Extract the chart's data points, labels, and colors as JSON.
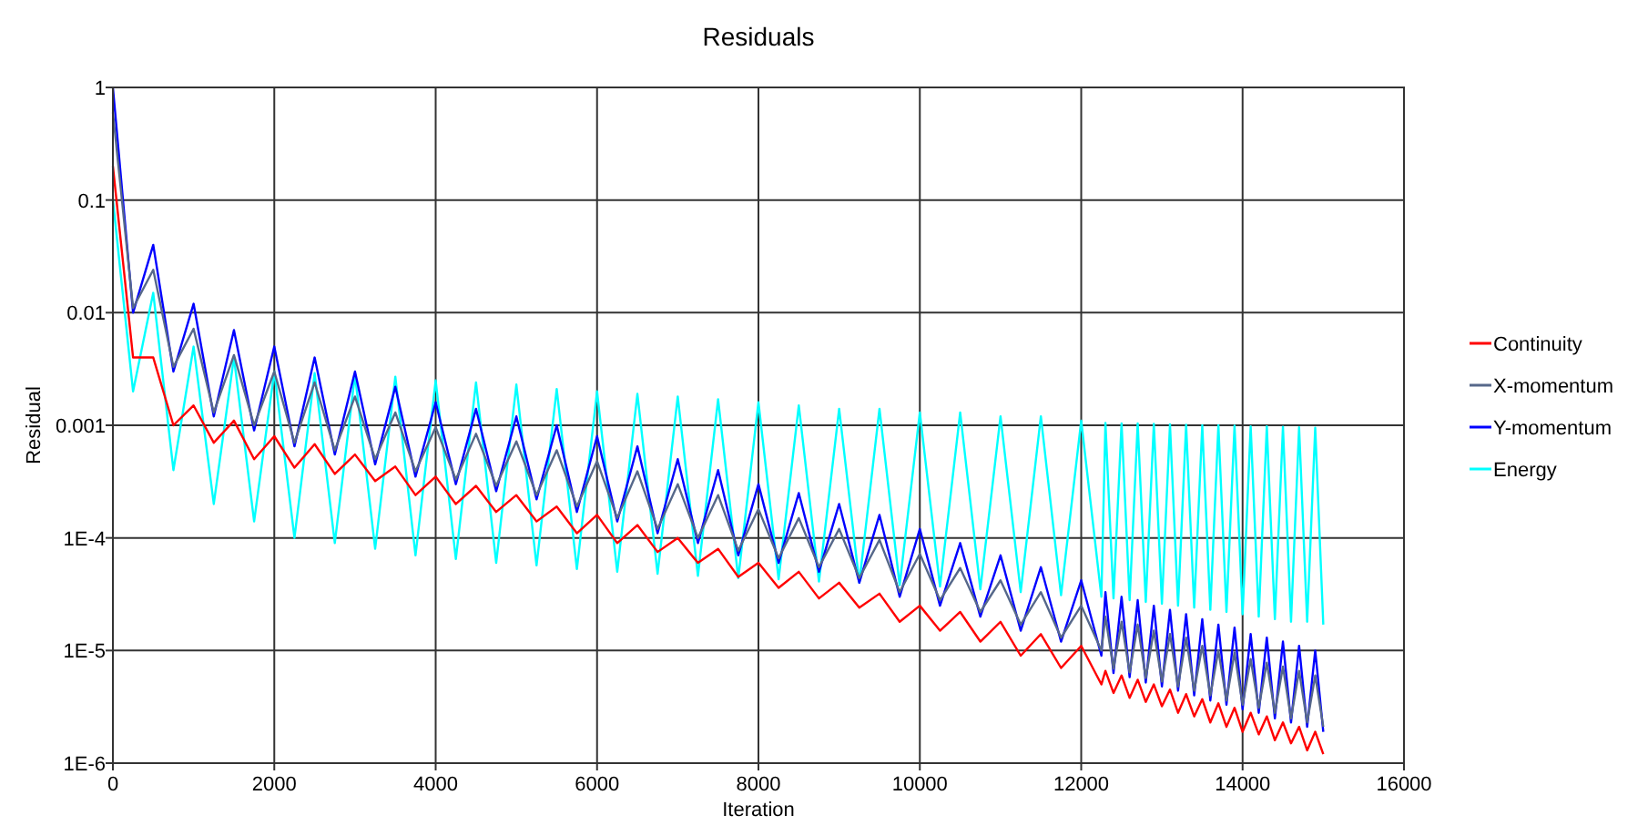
{
  "chart_data": {
    "type": "line",
    "title": "Residuals",
    "xlabel": "Iteration",
    "ylabel": "Residual",
    "x": [
      0,
      250,
      500,
      750,
      1000,
      1250,
      1500,
      1750,
      2000,
      2250,
      2500,
      2750,
      3000,
      3250,
      3500,
      3750,
      4000,
      4250,
      4500,
      4750,
      5000,
      5250,
      5500,
      5750,
      6000,
      6250,
      6500,
      6750,
      7000,
      7250,
      7500,
      7750,
      8000,
      8250,
      8500,
      8750,
      9000,
      9250,
      9500,
      9750,
      10000,
      10250,
      10500,
      10750,
      11000,
      11250,
      11500,
      11750,
      12000,
      12250,
      12300,
      12400,
      12500,
      12600,
      12700,
      12800,
      12900,
      13000,
      13100,
      13200,
      13300,
      13400,
      13500,
      13600,
      13700,
      13800,
      13900,
      14000,
      14100,
      14200,
      14300,
      14400,
      14500,
      14600,
      14700,
      14800,
      14900,
      15000
    ],
    "series": [
      {
        "name": "Continuity",
        "color": "#ff0000",
        "values": [
          0.2,
          0.004,
          0.004,
          0.001,
          0.0015,
          0.0007,
          0.0011,
          0.0005,
          0.0008,
          0.00042,
          0.00068,
          0.00037,
          0.00055,
          0.00032,
          0.00043,
          0.00024,
          0.00035,
          0.0002,
          0.00029,
          0.00017,
          0.00024,
          0.00014,
          0.00019,
          0.00011,
          0.00016,
          9e-05,
          0.00013,
          7.5e-05,
          0.0001,
          6e-05,
          8e-05,
          4.5e-05,
          6e-05,
          3.6e-05,
          5e-05,
          2.9e-05,
          4e-05,
          2.4e-05,
          3.2e-05,
          1.8e-05,
          2.5e-05,
          1.5e-05,
          2.2e-05,
          1.2e-05,
          1.8e-05,
          9e-06,
          1.4e-05,
          7e-06,
          1.1e-05,
          5e-06,
          6.6e-06,
          4.2e-06,
          6e-06,
          3.8e-06,
          5.5e-06,
          3.5e-06,
          5e-06,
          3.2e-06,
          4.5e-06,
          2.8e-06,
          4.1e-06,
          2.6e-06,
          3.7e-06,
          2.3e-06,
          3.4e-06,
          2.1e-06,
          3.1e-06,
          1.9e-06,
          2.8e-06,
          1.8e-06,
          2.6e-06,
          1.6e-06,
          2.3e-06,
          1.5e-06,
          2.1e-06,
          1.3e-06,
          1.9e-06,
          1.2e-06
        ]
      },
      {
        "name": "X-momentum",
        "color": "#56688a",
        "values": [
          0.6,
          0.011,
          0.024,
          0.0033,
          0.0072,
          0.0013,
          0.0042,
          0.001,
          0.003,
          0.0007,
          0.0024,
          0.0006,
          0.0018,
          0.0005,
          0.0013,
          0.00039,
          0.00096,
          0.00033,
          0.00084,
          0.00029,
          0.00072,
          0.00024,
          0.0006,
          0.00019,
          0.00048,
          0.00015,
          0.00039,
          0.00012,
          0.0003,
          0.0001,
          0.00024,
          7.7e-05,
          0.00018,
          6.6e-05,
          0.00015,
          5.5e-05,
          0.00012,
          4.4e-05,
          9.6e-05,
          3.3e-05,
          7.2e-05,
          2.8e-05,
          5.4e-05,
          2.2e-05,
          4.2e-05,
          1.7e-05,
          3.3e-05,
          1.3e-05,
          2.5e-05,
          1e-05,
          2e-05,
          6.9e-06,
          1.8e-05,
          6.4e-06,
          1.7e-05,
          5.7e-06,
          1.5e-05,
          5.3e-06,
          1.4e-05,
          4.8e-06,
          1.3e-05,
          4.4e-06,
          1.1e-05,
          4e-06,
          1e-05,
          3.6e-06,
          9.6e-06,
          3.3e-06,
          8.4e-06,
          3.1e-06,
          7.8e-06,
          2.8e-06,
          7.2e-06,
          2.5e-06,
          6.6e-06,
          2.3e-06,
          6e-06,
          2.1e-06
        ]
      },
      {
        "name": "Y-momentum",
        "color": "#0000ff",
        "values": [
          1,
          0.01,
          0.04,
          0.003,
          0.012,
          0.0012,
          0.007,
          0.0009,
          0.005,
          0.00065,
          0.004,
          0.00055,
          0.003,
          0.00045,
          0.0022,
          0.00035,
          0.0016,
          0.0003,
          0.0014,
          0.00026,
          0.0012,
          0.00022,
          0.001,
          0.00017,
          0.0008,
          0.00014,
          0.00065,
          0.00011,
          0.0005,
          9e-05,
          0.0004,
          7e-05,
          0.0003,
          6e-05,
          0.00025,
          5e-05,
          0.0002,
          4e-05,
          0.00016,
          3e-05,
          0.00012,
          2.5e-05,
          9e-05,
          2e-05,
          7e-05,
          1.5e-05,
          5.5e-05,
          1.2e-05,
          4.2e-05,
          9e-06,
          3.3e-05,
          6.3e-06,
          3e-05,
          5.8e-06,
          2.8e-05,
          5.2e-06,
          2.5e-05,
          4.8e-06,
          2.3e-05,
          4.4e-06,
          2.1e-05,
          4e-06,
          1.9e-05,
          3.6e-06,
          1.7e-05,
          3.3e-06,
          1.6e-05,
          3e-06,
          1.4e-05,
          2.8e-06,
          1.3e-05,
          2.5e-06,
          1.2e-05,
          2.3e-06,
          1.1e-05,
          2.1e-06,
          1e-05,
          1.9e-06
        ]
      },
      {
        "name": "Energy",
        "color": "#00ffff",
        "values": [
          0.1,
          0.002,
          0.015,
          0.0004,
          0.005,
          0.0002,
          0.004,
          0.00014,
          0.003,
          0.0001,
          0.0029,
          9e-05,
          0.0028,
          8e-05,
          0.0027,
          7e-05,
          0.0025,
          6.5e-05,
          0.0024,
          6e-05,
          0.0023,
          5.7e-05,
          0.0021,
          5.3e-05,
          0.002,
          5e-05,
          0.0019,
          4.8e-05,
          0.0018,
          4.6e-05,
          0.0017,
          4.4e-05,
          0.0016,
          4.3e-05,
          0.0015,
          4.1e-05,
          0.0014,
          4e-05,
          0.0014,
          3.8e-05,
          0.0013,
          3.7e-05,
          0.0013,
          3.5e-05,
          0.0012,
          3.3e-05,
          0.0012,
          3.1e-05,
          0.0011,
          3e-05,
          0.00105,
          2.9e-05,
          0.00104,
          2.8e-05,
          0.00104,
          2.7e-05,
          0.00103,
          2.6e-05,
          0.00102,
          2.5e-05,
          0.00101,
          2.4e-05,
          0.001,
          2.3e-05,
          0.001,
          2.2e-05,
          0.00099,
          2.1e-05,
          0.00098,
          2e-05,
          0.00098,
          1.9e-05,
          0.00097,
          1.8e-05,
          0.00096,
          1.8e-05,
          0.00095,
          1.7e-05
        ]
      }
    ],
    "log": "y",
    "grid": true,
    "legend": "right",
    "marker": "none",
    "line_style": "solid",
    "xlim": [
      0,
      16000
    ],
    "xticks": [
      0,
      2000,
      4000,
      6000,
      8000,
      10000,
      12000,
      14000,
      16000
    ],
    "ylim": [
      1e-06,
      1
    ],
    "yticks": [
      {
        "value": 1e-06,
        "label": "1E-6"
      },
      {
        "value": 1e-05,
        "label": "1E-5"
      },
      {
        "value": 0.0001,
        "label": "1E-4"
      },
      0.001,
      0.01,
      0.1,
      1
    ]
  }
}
